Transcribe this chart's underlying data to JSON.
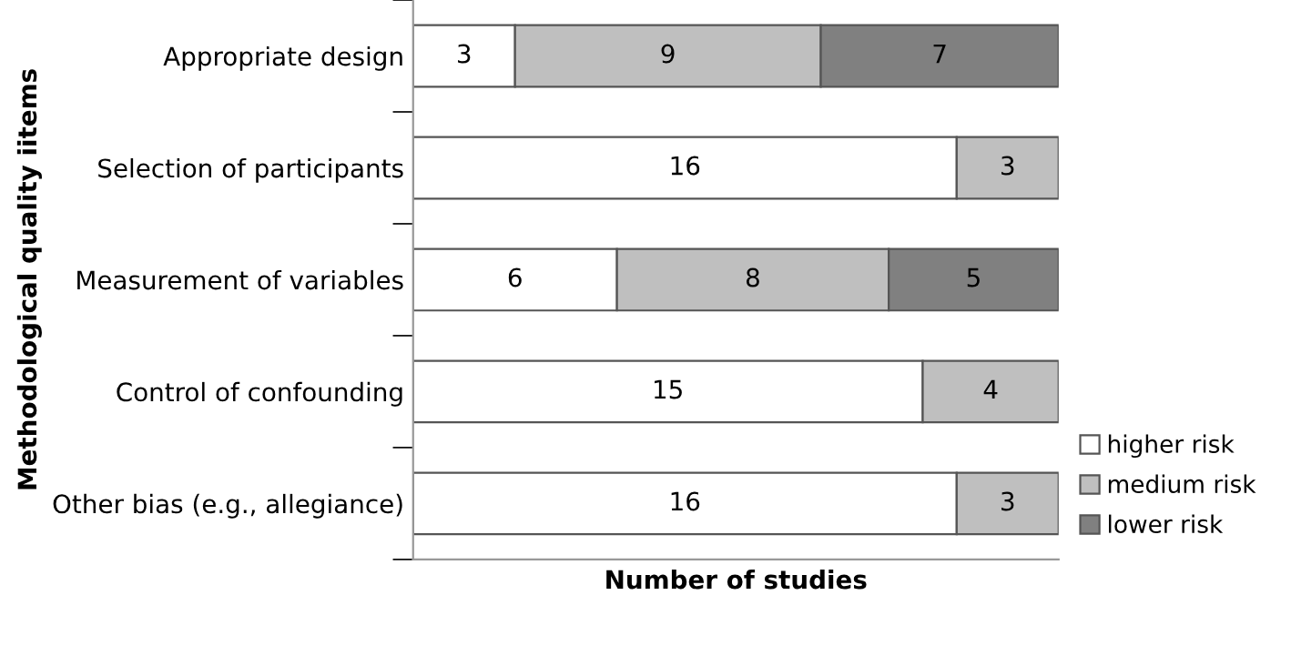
{
  "chart_data": {
    "type": "bar",
    "orientation": "horizontal",
    "stacked": true,
    "data_labels": true,
    "ylabel": "Methodological quality iitems",
    "xlabel": "Number of studies",
    "categories": [
      "Appropriate design",
      "Selection of participants",
      "Measurement of variables",
      "Control of confounding",
      "Other bias (e.g., allegiance)"
    ],
    "series": [
      {
        "name": "higher risk",
        "color": "#ffffff",
        "values": [
          3,
          16,
          6,
          15,
          16
        ]
      },
      {
        "name": "medium risk",
        "color": "#bfbfbf",
        "values": [
          9,
          3,
          8,
          4,
          3
        ]
      },
      {
        "name": "lower risk",
        "color": "#808080",
        "values": [
          7,
          null,
          5,
          null,
          null
        ]
      }
    ],
    "xlim": [
      0,
      19
    ],
    "tick_labels": "y",
    "legend": "bottom right",
    "grid": false
  }
}
